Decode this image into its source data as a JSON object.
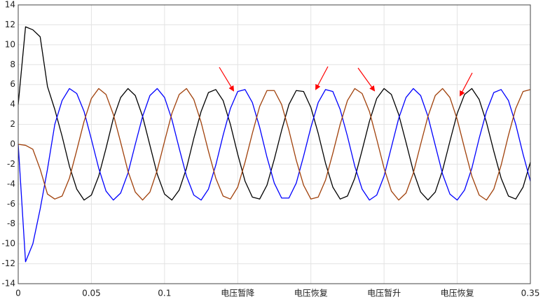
{
  "chart_data": {
    "type": "line",
    "x": [
      0,
      0.005,
      0.01,
      0.015,
      0.02,
      0.025,
      0.03,
      0.035,
      0.04,
      0.045,
      0.05,
      0.055,
      0.06,
      0.065,
      0.07,
      0.075,
      0.08,
      0.085,
      0.09,
      0.095,
      0.1,
      0.105,
      0.11,
      0.115,
      0.12,
      0.125,
      0.13,
      0.135,
      0.14,
      0.145,
      0.15,
      0.155,
      0.16,
      0.165,
      0.17,
      0.175,
      0.18,
      0.185,
      0.19,
      0.195,
      0.2,
      0.205,
      0.21,
      0.215,
      0.22,
      0.225,
      0.23,
      0.235,
      0.24,
      0.245,
      0.25,
      0.255,
      0.26,
      0.265,
      0.27,
      0.275,
      0.28,
      0.285,
      0.29,
      0.295,
      0.3,
      0.305,
      0.31,
      0.315,
      0.32,
      0.325,
      0.33,
      0.335,
      0.34,
      0.345,
      0.35
    ],
    "series": [
      {
        "color": "#000000",
        "values": [
          4.0,
          11.8,
          11.5,
          10.8,
          5.8,
          3.5,
          0.8,
          -2.2,
          -4.5,
          -5.6,
          -5.1,
          -3.2,
          -0.4,
          2.6,
          4.7,
          5.6,
          4.9,
          2.8,
          -0.1,
          -3.0,
          -5.0,
          -5.6,
          -4.6,
          -2.4,
          0.6,
          3.3,
          5.2,
          5.5,
          4.4,
          2.0,
          -1.0,
          -3.7,
          -5.3,
          -5.5,
          -4.1,
          -1.5,
          1.4,
          4.0,
          5.4,
          5.3,
          3.7,
          1.1,
          -1.9,
          -4.3,
          -5.5,
          -5.2,
          -3.4,
          -0.6,
          2.3,
          4.6,
          5.6,
          5.0,
          3.0,
          0.2,
          -2.7,
          -4.8,
          -5.6,
          -4.8,
          -2.6,
          0.3,
          3.1,
          5.0,
          5.6,
          4.5,
          2.2,
          -0.7,
          -3.4,
          -5.2,
          -5.5,
          -4.3,
          -1.8
        ]
      },
      {
        "color": "#0000ff",
        "values": [
          0.0,
          -11.8,
          -10.0,
          -6.5,
          -2.5,
          2.0,
          4.4,
          5.6,
          5.1,
          3.3,
          0.5,
          -2.4,
          -4.7,
          -5.6,
          -4.9,
          -2.9,
          0.0,
          2.8,
          4.9,
          5.6,
          4.7,
          2.5,
          -0.4,
          -3.2,
          -5.1,
          -5.6,
          -4.5,
          -2.1,
          0.9,
          3.6,
          5.3,
          5.5,
          4.2,
          1.7,
          -1.3,
          -3.9,
          -5.4,
          -5.4,
          -3.9,
          -1.2,
          1.7,
          4.2,
          5.5,
          5.3,
          3.5,
          0.8,
          -2.2,
          -4.5,
          -5.6,
          -5.1,
          -3.2,
          -0.3,
          2.6,
          4.7,
          5.6,
          4.9,
          2.8,
          -0.1,
          -3.0,
          -5.0,
          -5.6,
          -4.6,
          -2.4,
          0.6,
          3.3,
          5.2,
          5.5,
          4.4,
          2.0,
          -1.0,
          -3.7
        ]
      },
      {
        "color": "#a0400a",
        "values": [
          0.0,
          -0.1,
          -0.5,
          -2.5,
          -5.0,
          -5.5,
          -5.2,
          -3.4,
          -0.6,
          2.3,
          4.6,
          5.6,
          5.0,
          3.0,
          0.2,
          -2.7,
          -4.8,
          -5.6,
          -4.8,
          -2.6,
          0.3,
          3.1,
          5.0,
          5.6,
          4.5,
          2.2,
          -0.7,
          -3.4,
          -5.2,
          -5.5,
          -4.3,
          -1.8,
          1.1,
          3.8,
          5.4,
          5.4,
          4.0,
          1.4,
          -1.6,
          -4.1,
          -5.5,
          -5.3,
          -3.6,
          -0.9,
          2.0,
          4.4,
          5.6,
          5.1,
          3.3,
          0.5,
          -2.4,
          -4.7,
          -5.6,
          -4.9,
          -2.9,
          0.0,
          2.8,
          4.9,
          5.6,
          4.7,
          2.5,
          -0.4,
          -3.2,
          -5.1,
          -5.6,
          -4.5,
          -2.1,
          0.9,
          3.6,
          5.3,
          5.5
        ]
      }
    ],
    "xlim": [
      0,
      0.35
    ],
    "xticks": [
      0,
      0.05,
      0.1,
      {
        "value": 0.15,
        "label": "电压暂降"
      },
      {
        "value": 0.2,
        "label": "电压恢复"
      },
      {
        "value": 0.25,
        "label": "电压暂升"
      },
      {
        "value": 0.3,
        "label": "电压恢复"
      },
      0.35
    ],
    "ylim": [
      -14,
      14
    ],
    "yticks": [
      -14,
      -12,
      -10,
      -8,
      -6,
      -4,
      -2,
      0,
      2,
      4,
      6,
      8,
      10,
      12,
      14
    ],
    "grid": true
  }
}
